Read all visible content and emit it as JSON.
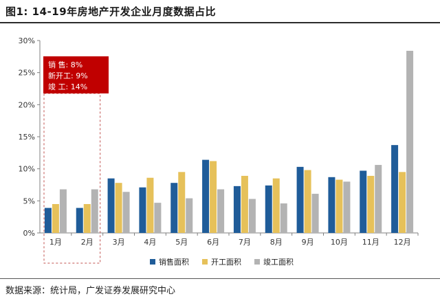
{
  "title": "图1:  14-19年房地产开发企业月度数据占比",
  "source": "数据来源：统计局，广发证券发展研究中心",
  "annotation": {
    "lines": [
      "销   售: 8%",
      "新开工: 9%",
      "竣   工: 14%"
    ],
    "bg_color": "#c00000",
    "box_color": "#c0504d"
  },
  "chart_data": {
    "type": "bar",
    "title": "",
    "xlabel": "",
    "ylabel": "",
    "categories": [
      "1月",
      "2月",
      "3月",
      "4月",
      "5月",
      "6月",
      "7月",
      "8月",
      "9月",
      "10月",
      "11月",
      "12月"
    ],
    "ylim": [
      0,
      30
    ],
    "yticks": [
      0,
      5,
      10,
      15,
      20,
      25,
      30
    ],
    "ytick_labels": [
      "0%",
      "5%",
      "10%",
      "15%",
      "20%",
      "25%",
      "30%"
    ],
    "grid": false,
    "legend_position": "bottom-right",
    "series": [
      {
        "name": "销售面积",
        "color": "#1f5c99",
        "values": [
          3.9,
          3.9,
          8.5,
          7.1,
          7.8,
          11.4,
          7.3,
          7.4,
          10.3,
          8.7,
          9.7,
          13.7
        ]
      },
      {
        "name": "开工面积",
        "color": "#e6c15a",
        "values": [
          4.5,
          4.5,
          7.8,
          8.6,
          9.5,
          11.2,
          8.9,
          8.5,
          9.8,
          8.3,
          8.9,
          9.5
        ]
      },
      {
        "name": "竣工面积",
        "color": "#b3b3b3",
        "values": [
          6.8,
          6.8,
          6.4,
          4.7,
          5.4,
          6.8,
          5.3,
          4.6,
          6.1,
          8.0,
          10.6,
          28.4
        ]
      }
    ]
  }
}
